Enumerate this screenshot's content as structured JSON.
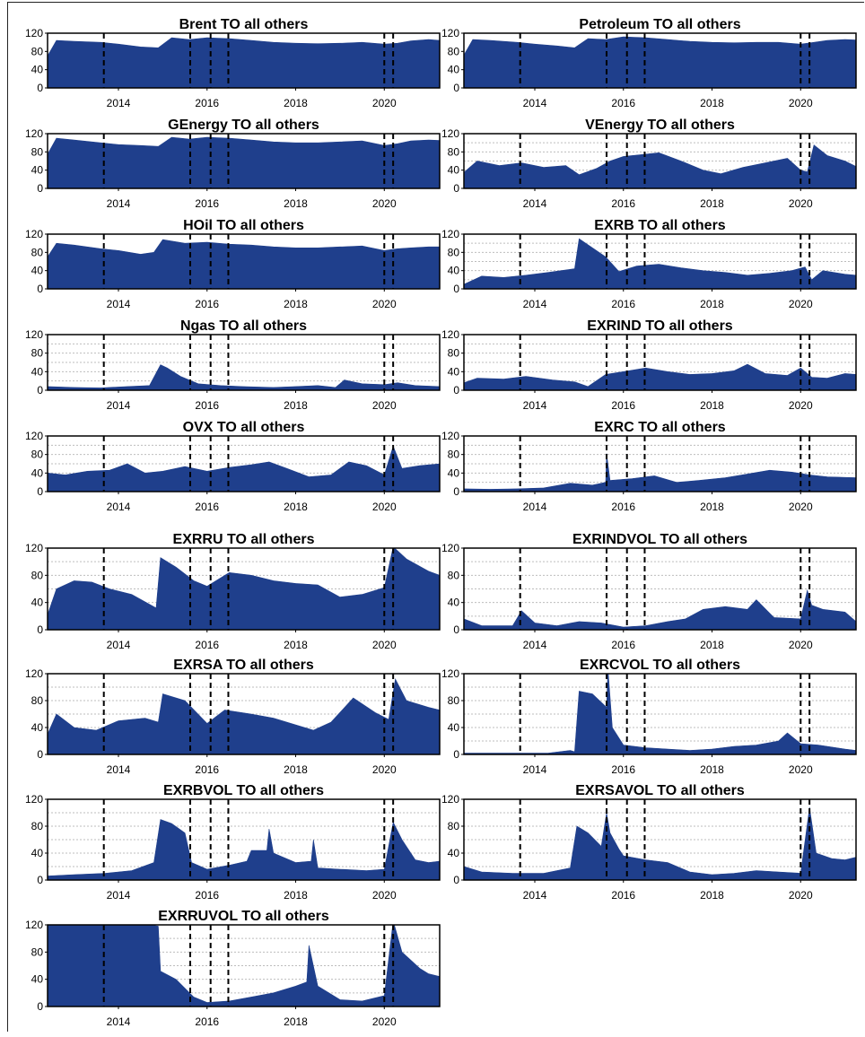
{
  "colors": {
    "fill": "#1f3f8c",
    "vline": "#000000",
    "grid": "#bdbdbd"
  },
  "chart_data": [
    {
      "type": "area",
      "title": "Brent TO all others",
      "ylim": [
        0,
        120
      ],
      "yticks": [
        0,
        40,
        80,
        120
      ],
      "xlim": [
        2012.4,
        2021.25
      ],
      "xticks": [
        2014,
        2016,
        2018,
        2020
      ],
      "vlines": [
        2013.67,
        2015.62,
        2016.08,
        2016.48,
        2020.0,
        2020.2
      ],
      "grid": false,
      "x": [
        2012.4,
        2012.6,
        2013.0,
        2013.6,
        2014.0,
        2014.5,
        2014.9,
        2015.2,
        2015.6,
        2016.0,
        2016.5,
        2017.0,
        2017.5,
        2018.0,
        2018.5,
        2019.0,
        2019.5,
        2020.0,
        2020.3,
        2020.6,
        2021.0,
        2021.25
      ],
      "y": [
        70,
        104,
        102,
        100,
        96,
        90,
        88,
        110,
        106,
        110,
        108,
        104,
        100,
        98,
        97,
        98,
        100,
        96,
        98,
        103,
        106,
        104
      ]
    },
    {
      "type": "area",
      "title": "Petroleum TO all others",
      "ylim": [
        0,
        120
      ],
      "yticks": [
        0,
        40,
        80,
        120
      ],
      "xlim": [
        2012.4,
        2021.25
      ],
      "xticks": [
        2014,
        2016,
        2018,
        2020
      ],
      "vlines": [
        2013.67,
        2015.62,
        2016.08,
        2016.48,
        2020.0,
        2020.2
      ],
      "grid": false,
      "x": [
        2012.4,
        2012.6,
        2013.0,
        2013.6,
        2014.0,
        2014.5,
        2014.9,
        2015.2,
        2015.6,
        2016.0,
        2016.5,
        2017.0,
        2017.5,
        2018.0,
        2018.5,
        2019.0,
        2019.5,
        2020.0,
        2020.3,
        2020.6,
        2021.0,
        2021.25
      ],
      "y": [
        72,
        106,
        104,
        100,
        96,
        92,
        88,
        108,
        106,
        112,
        110,
        106,
        102,
        100,
        99,
        100,
        100,
        96,
        100,
        104,
        106,
        105
      ]
    },
    {
      "type": "area",
      "title": "GEnergy TO all others",
      "ylim": [
        0,
        120
      ],
      "yticks": [
        0,
        40,
        80,
        120
      ],
      "xlim": [
        2012.4,
        2021.25
      ],
      "xticks": [
        2014,
        2016,
        2018,
        2020
      ],
      "vlines": [
        2013.67,
        2015.62,
        2016.08,
        2016.48,
        2020.0,
        2020.2
      ],
      "grid": false,
      "x": [
        2012.4,
        2012.6,
        2013.0,
        2013.6,
        2014.0,
        2014.5,
        2014.9,
        2015.2,
        2015.6,
        2016.0,
        2016.5,
        2017.0,
        2017.5,
        2018.0,
        2018.5,
        2019.0,
        2019.5,
        2020.0,
        2020.3,
        2020.6,
        2021.0,
        2021.25
      ],
      "y": [
        75,
        110,
        106,
        100,
        96,
        94,
        92,
        112,
        108,
        112,
        110,
        106,
        102,
        100,
        100,
        102,
        104,
        94,
        98,
        104,
        106,
        105
      ]
    },
    {
      "type": "area",
      "title": "VEnergy TO all others",
      "ylim": [
        0,
        120
      ],
      "yticks": [
        0,
        40,
        80,
        120
      ],
      "xlim": [
        2012.4,
        2021.25
      ],
      "xticks": [
        2014,
        2016,
        2018,
        2020
      ],
      "vlines": [
        2013.67,
        2015.62,
        2016.08,
        2016.48,
        2020.0,
        2020.2
      ],
      "grid": true,
      "x": [
        2012.4,
        2012.7,
        2013.2,
        2013.7,
        2014.2,
        2014.7,
        2015.0,
        2015.4,
        2015.7,
        2016.0,
        2016.4,
        2016.8,
        2017.3,
        2017.8,
        2018.2,
        2018.7,
        2019.2,
        2019.7,
        2020.0,
        2020.15,
        2020.3,
        2020.6,
        2021.0,
        2021.25
      ],
      "y": [
        35,
        60,
        50,
        56,
        46,
        50,
        30,
        44,
        60,
        70,
        74,
        78,
        60,
        40,
        32,
        46,
        56,
        66,
        40,
        36,
        95,
        72,
        60,
        48
      ]
    },
    {
      "type": "area",
      "title": "HOil TO all others",
      "ylim": [
        0,
        120
      ],
      "yticks": [
        0,
        40,
        80,
        120
      ],
      "xlim": [
        2012.4,
        2021.25
      ],
      "xticks": [
        2014,
        2016,
        2018,
        2020
      ],
      "vlines": [
        2013.67,
        2015.62,
        2016.08,
        2016.48,
        2020.0,
        2020.2
      ],
      "grid": false,
      "x": [
        2012.4,
        2012.6,
        2013.0,
        2013.6,
        2014.0,
        2014.5,
        2014.8,
        2015.0,
        2015.5,
        2016.0,
        2016.5,
        2017.0,
        2017.5,
        2018.0,
        2018.5,
        2019.0,
        2019.5,
        2020.0,
        2020.3,
        2020.6,
        2021.0,
        2021.25
      ],
      "y": [
        70,
        100,
        96,
        88,
        84,
        76,
        80,
        108,
        100,
        102,
        98,
        96,
        92,
        90,
        90,
        92,
        94,
        84,
        88,
        90,
        92,
        92
      ]
    },
    {
      "type": "area",
      "title": "EXRB TO all others",
      "ylim": [
        0,
        120
      ],
      "yticks": [
        0,
        40,
        80,
        120
      ],
      "xlim": [
        2012.4,
        2021.25
      ],
      "xticks": [
        2014,
        2016,
        2018,
        2020
      ],
      "vlines": [
        2013.67,
        2015.62,
        2016.08,
        2016.48,
        2020.0,
        2020.2
      ],
      "grid": true,
      "x": [
        2012.4,
        2012.8,
        2013.3,
        2013.8,
        2014.3,
        2014.9,
        2015.0,
        2015.3,
        2015.6,
        2015.9,
        2016.3,
        2016.8,
        2017.3,
        2017.8,
        2018.3,
        2018.8,
        2019.3,
        2019.8,
        2020.1,
        2020.25,
        2020.5,
        2021.0,
        2021.25
      ],
      "y": [
        10,
        28,
        25,
        30,
        36,
        44,
        110,
        90,
        70,
        38,
        50,
        54,
        46,
        40,
        36,
        30,
        34,
        40,
        48,
        20,
        40,
        32,
        30
      ]
    },
    {
      "type": "area",
      "title": "Ngas TO all others",
      "ylim": [
        0,
        120
      ],
      "yticks": [
        0,
        40,
        80,
        120
      ],
      "xlim": [
        2012.4,
        2021.25
      ],
      "xticks": [
        2014,
        2016,
        2018,
        2020
      ],
      "vlines": [
        2013.67,
        2015.62,
        2016.08,
        2016.48,
        2020.0,
        2020.2
      ],
      "grid": true,
      "x": [
        2012.4,
        2013.0,
        2013.6,
        2014.2,
        2014.7,
        2014.95,
        2015.1,
        2015.4,
        2015.8,
        2016.3,
        2016.8,
        2017.5,
        2018.0,
        2018.5,
        2018.9,
        2019.1,
        2019.5,
        2020.0,
        2020.3,
        2020.7,
        2021.25
      ],
      "y": [
        8,
        6,
        5,
        8,
        10,
        55,
        48,
        30,
        14,
        10,
        8,
        6,
        8,
        10,
        6,
        22,
        14,
        12,
        16,
        10,
        8
      ]
    },
    {
      "type": "area",
      "title": "EXRIND TO all others",
      "ylim": [
        0,
        120
      ],
      "yticks": [
        0,
        40,
        80,
        120
      ],
      "xlim": [
        2012.4,
        2021.25
      ],
      "xticks": [
        2014,
        2016,
        2018,
        2020
      ],
      "vlines": [
        2013.67,
        2015.62,
        2016.08,
        2016.48,
        2020.0,
        2020.2
      ],
      "grid": true,
      "x": [
        2012.4,
        2012.7,
        2013.3,
        2013.8,
        2014.4,
        2014.9,
        2015.2,
        2015.6,
        2016.0,
        2016.5,
        2017.0,
        2017.5,
        2018.0,
        2018.5,
        2018.8,
        2019.2,
        2019.7,
        2020.0,
        2020.25,
        2020.6,
        2021.0,
        2021.25
      ],
      "y": [
        16,
        26,
        24,
        30,
        22,
        18,
        8,
        34,
        40,
        48,
        40,
        34,
        36,
        42,
        56,
        36,
        32,
        48,
        28,
        26,
        36,
        34
      ]
    },
    {
      "type": "area",
      "title": "OVX TO all others",
      "ylim": [
        0,
        120
      ],
      "yticks": [
        0,
        40,
        80,
        120
      ],
      "xlim": [
        2012.4,
        2021.25
      ],
      "xticks": [
        2014,
        2016,
        2018,
        2020
      ],
      "vlines": [
        2013.67,
        2015.62,
        2016.08,
        2016.48,
        2020.0,
        2020.2
      ],
      "grid": true,
      "x": [
        2012.4,
        2012.8,
        2013.3,
        2013.8,
        2014.2,
        2014.6,
        2015.0,
        2015.5,
        2016.0,
        2016.5,
        2017.0,
        2017.4,
        2017.8,
        2018.3,
        2018.8,
        2019.2,
        2019.6,
        2020.0,
        2020.2,
        2020.4,
        2020.8,
        2021.25
      ],
      "y": [
        40,
        36,
        44,
        46,
        60,
        40,
        44,
        54,
        44,
        52,
        58,
        64,
        50,
        32,
        36,
        64,
        56,
        36,
        98,
        50,
        56,
        60
      ]
    },
    {
      "type": "area",
      "title": "EXRC TO all others",
      "ylim": [
        0,
        120
      ],
      "yticks": [
        0,
        40,
        80,
        120
      ],
      "xlim": [
        2012.4,
        2021.25
      ],
      "xticks": [
        2014,
        2016,
        2018,
        2020
      ],
      "vlines": [
        2013.67,
        2015.62,
        2016.08,
        2016.48,
        2020.0,
        2020.2
      ],
      "grid": true,
      "x": [
        2012.4,
        2013.0,
        2013.6,
        2014.2,
        2014.8,
        2015.3,
        2015.6,
        2015.62,
        2015.7,
        2016.2,
        2016.7,
        2017.2,
        2017.7,
        2018.3,
        2018.8,
        2019.3,
        2019.8,
        2020.2,
        2020.6,
        2021.25
      ],
      "y": [
        6,
        5,
        6,
        8,
        18,
        14,
        20,
        82,
        24,
        28,
        34,
        20,
        24,
        30,
        38,
        46,
        42,
        36,
        32,
        30
      ]
    },
    {
      "type": "area",
      "title": "EXRRU TO all others",
      "ylim": [
        0,
        120
      ],
      "yticks": [
        0,
        40,
        80,
        120
      ],
      "xlim": [
        2012.4,
        2021.25
      ],
      "xticks": [
        2014,
        2016,
        2018,
        2020
      ],
      "vlines": [
        2013.67,
        2015.62,
        2016.08,
        2016.48,
        2020.0,
        2020.2
      ],
      "grid": true,
      "x": [
        2012.4,
        2012.6,
        2013.0,
        2013.4,
        2013.8,
        2014.3,
        2014.85,
        2014.95,
        2015.3,
        2015.7,
        2016.0,
        2016.5,
        2017.0,
        2017.5,
        2018.0,
        2018.5,
        2019.0,
        2019.5,
        2020.0,
        2020.2,
        2020.5,
        2021.0,
        2021.25
      ],
      "y": [
        22,
        60,
        72,
        70,
        60,
        52,
        32,
        106,
        92,
        72,
        64,
        84,
        80,
        72,
        68,
        66,
        48,
        52,
        62,
        122,
        104,
        86,
        80
      ]
    },
    {
      "type": "area",
      "title": "EXRINDVOL TO all others",
      "ylim": [
        0,
        120
      ],
      "yticks": [
        0,
        40,
        80,
        120
      ],
      "xlim": [
        2012.4,
        2021.25
      ],
      "xticks": [
        2014,
        2016,
        2018,
        2020
      ],
      "vlines": [
        2013.67,
        2015.62,
        2016.08,
        2016.48,
        2020.0,
        2020.2
      ],
      "grid": true,
      "x": [
        2012.4,
        2012.8,
        2013.5,
        2013.7,
        2014.0,
        2014.5,
        2015.0,
        2015.5,
        2016.0,
        2016.5,
        2017.0,
        2017.4,
        2017.8,
        2018.3,
        2018.8,
        2019.0,
        2019.4,
        2020.0,
        2020.15,
        2020.25,
        2020.5,
        2021.0,
        2021.25
      ],
      "y": [
        16,
        6,
        6,
        28,
        10,
        6,
        12,
        10,
        4,
        6,
        12,
        16,
        30,
        34,
        30,
        44,
        18,
        16,
        58,
        36,
        30,
        26,
        12
      ]
    },
    {
      "type": "area",
      "title": "EXRSA TO all others",
      "ylim": [
        0,
        120
      ],
      "yticks": [
        0,
        40,
        80,
        120
      ],
      "xlim": [
        2012.4,
        2021.25
      ],
      "xticks": [
        2014,
        2016,
        2018,
        2020
      ],
      "vlines": [
        2013.67,
        2015.62,
        2016.08,
        2016.48,
        2020.0,
        2020.2
      ],
      "grid": true,
      "x": [
        2012.4,
        2012.6,
        2013.0,
        2013.5,
        2014.0,
        2014.6,
        2014.9,
        2015.0,
        2015.5,
        2016.0,
        2016.4,
        2017.0,
        2017.5,
        2018.0,
        2018.4,
        2018.8,
        2019.3,
        2019.8,
        2020.1,
        2020.25,
        2020.5,
        2021.0,
        2021.25
      ],
      "y": [
        30,
        60,
        40,
        36,
        50,
        54,
        48,
        90,
        80,
        46,
        66,
        60,
        54,
        44,
        36,
        48,
        84,
        62,
        52,
        112,
        80,
        70,
        66
      ]
    },
    {
      "type": "area",
      "title": "EXRCVOL TO all others",
      "ylim": [
        0,
        120
      ],
      "yticks": [
        0,
        40,
        80,
        120
      ],
      "xlim": [
        2012.4,
        2021.25
      ],
      "xticks": [
        2014,
        2016,
        2018,
        2020
      ],
      "vlines": [
        2013.67,
        2015.62,
        2016.08,
        2016.48,
        2020.0,
        2020.2
      ],
      "grid": true,
      "x": [
        2012.4,
        2013.0,
        2013.8,
        2014.3,
        2014.8,
        2014.9,
        2015.0,
        2015.3,
        2015.62,
        2015.65,
        2015.75,
        2016.0,
        2016.5,
        2017.0,
        2017.5,
        2018.0,
        2018.5,
        2019.0,
        2019.5,
        2019.7,
        2020.0,
        2020.4,
        2021.0,
        2021.25
      ],
      "y": [
        2,
        2,
        2,
        2,
        6,
        4,
        94,
        90,
        70,
        128,
        40,
        14,
        10,
        8,
        6,
        8,
        12,
        14,
        20,
        32,
        16,
        14,
        8,
        6
      ]
    },
    {
      "type": "area",
      "title": "EXRBVOL TO all others",
      "ylim": [
        0,
        120
      ],
      "yticks": [
        0,
        40,
        80,
        120
      ],
      "xlim": [
        2012.4,
        2021.25
      ],
      "xticks": [
        2014,
        2016,
        2018,
        2020
      ],
      "vlines": [
        2013.67,
        2015.62,
        2016.08,
        2016.48,
        2020.0,
        2020.2
      ],
      "grid": true,
      "x": [
        2012.4,
        2013.0,
        2013.7,
        2014.3,
        2014.8,
        2014.95,
        2015.2,
        2015.5,
        2015.65,
        2016.0,
        2016.5,
        2016.9,
        2017.0,
        2017.35,
        2017.4,
        2017.5,
        2018.0,
        2018.35,
        2018.4,
        2018.5,
        2019.0,
        2019.6,
        2020.0,
        2020.2,
        2020.4,
        2020.7,
        2021.0,
        2021.25
      ],
      "y": [
        6,
        8,
        10,
        14,
        26,
        90,
        84,
        70,
        26,
        16,
        22,
        28,
        44,
        44,
        76,
        40,
        26,
        28,
        60,
        18,
        16,
        14,
        16,
        86,
        60,
        30,
        26,
        28
      ]
    },
    {
      "type": "area",
      "title": "EXRSAVOL TO all others",
      "ylim": [
        0,
        120
      ],
      "yticks": [
        0,
        40,
        80,
        120
      ],
      "xlim": [
        2012.4,
        2021.25
      ],
      "xticks": [
        2014,
        2016,
        2018,
        2020
      ],
      "vlines": [
        2013.67,
        2015.62,
        2016.08,
        2016.48,
        2020.0,
        2020.2
      ],
      "grid": true,
      "x": [
        2012.4,
        2012.8,
        2013.5,
        2014.2,
        2014.8,
        2014.95,
        2015.2,
        2015.5,
        2015.62,
        2015.7,
        2015.9,
        2016.0,
        2016.5,
        2017.0,
        2017.5,
        2018.0,
        2018.5,
        2019.0,
        2019.5,
        2020.0,
        2020.2,
        2020.35,
        2020.7,
        2021.0,
        2021.25
      ],
      "y": [
        20,
        12,
        10,
        10,
        18,
        80,
        70,
        50,
        100,
        70,
        46,
        36,
        30,
        26,
        12,
        8,
        10,
        14,
        12,
        10,
        108,
        40,
        32,
        30,
        34
      ]
    },
    {
      "type": "area",
      "title": "EXRRUVOL TO all others",
      "ylim": [
        0,
        120
      ],
      "yticks": [
        0,
        40,
        80,
        120
      ],
      "xlim": [
        2012.4,
        2021.25
      ],
      "xticks": [
        2014,
        2016,
        2018,
        2020
      ],
      "vlines": [
        2013.67,
        2015.62,
        2016.08,
        2016.48,
        2020.0,
        2020.2
      ],
      "grid": true,
      "x": [
        2012.4,
        2013.0,
        2013.7,
        2014.4,
        2014.9,
        2014.95,
        2015.3,
        2015.7,
        2016.0,
        2016.5,
        2017.0,
        2017.5,
        2018.0,
        2018.25,
        2018.3,
        2018.5,
        2019.0,
        2019.5,
        2020.0,
        2020.2,
        2020.4,
        2020.8,
        2021.0,
        2021.25
      ],
      "y": [
        120,
        124,
        124,
        124,
        118,
        52,
        40,
        14,
        6,
        8,
        14,
        20,
        30,
        36,
        90,
        30,
        10,
        8,
        16,
        126,
        80,
        56,
        48,
        44
      ]
    }
  ]
}
